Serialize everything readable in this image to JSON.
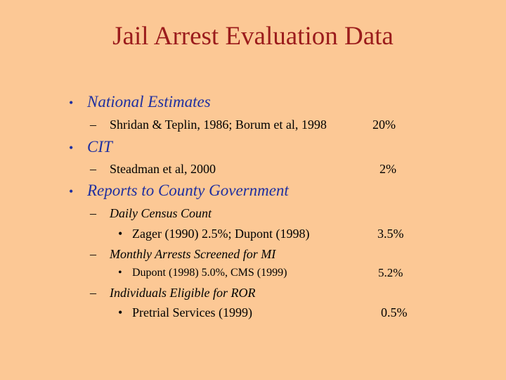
{
  "slide": {
    "title": "Jail Arrest Evaluation Data",
    "sections": [
      {
        "heading": "National Estimates",
        "items": [
          {
            "text": "Shridan & Teplin, 1986; Borum et al, 1998",
            "value": "20%"
          }
        ]
      },
      {
        "heading": "CIT",
        "items": [
          {
            "text": "Steadman et al, 2000",
            "value": "2%"
          }
        ]
      },
      {
        "heading": "Reports to County Government",
        "subsections": [
          {
            "label": "Daily Census Count",
            "items": [
              {
                "text": "Zager (1990) 2.5%; Dupont (1998)",
                "value": "3.5%"
              }
            ]
          },
          {
            "label": "Monthly Arrests Screened for MI",
            "items": [
              {
                "text": "Dupont (1998) 5.0%, CMS (1999)",
                "value": "5.2%"
              }
            ]
          },
          {
            "label": "Individuals Eligible for ROR",
            "items": [
              {
                "text": "Pretrial Services (1999)",
                "value": "0.5%"
              }
            ]
          }
        ]
      }
    ]
  }
}
